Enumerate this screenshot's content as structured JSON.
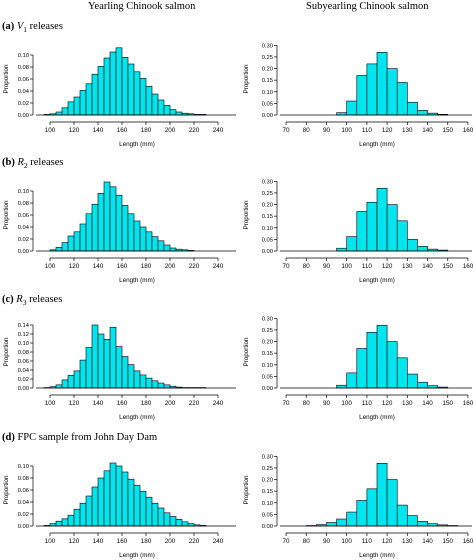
{
  "titles": {
    "col_left": "Yearling Chinook salmon",
    "col_right": "Subyearling Chinook salmon"
  },
  "rows": [
    {
      "tag": "(a)",
      "sym": "V",
      "sub": "1",
      "rest": " releases"
    },
    {
      "tag": "(b)",
      "sym": "R",
      "sub": "2",
      "rest": " releases"
    },
    {
      "tag": "(c)",
      "sym": "R",
      "sub": "3",
      "rest": " releases"
    },
    {
      "tag": "(d)",
      "sym": "",
      "sub": "",
      "rest": " FPC sample from John Day Dam"
    }
  ],
  "chart_data": [
    {
      "type": "bar",
      "panel": "a-yearling",
      "bar_color": "#00e5ee",
      "xlabel": "Length (mm)",
      "ylabel": "Proportion",
      "xlim": [
        90,
        255
      ],
      "xticks": [
        100,
        120,
        140,
        160,
        180,
        200,
        220,
        240
      ],
      "ylim": [
        0,
        0.12
      ],
      "yticks": [
        "0.00",
        "0.02",
        "0.04",
        "0.06",
        "0.08",
        "0.10"
      ],
      "bin_start": 95,
      "bin_width": 5,
      "values": [
        0.001,
        0.002,
        0.005,
        0.012,
        0.022,
        0.03,
        0.041,
        0.052,
        0.068,
        0.081,
        0.095,
        0.105,
        0.112,
        0.096,
        0.085,
        0.072,
        0.061,
        0.048,
        0.035,
        0.025,
        0.016,
        0.009,
        0.005,
        0.003,
        0.002,
        0.001,
        0.001
      ]
    },
    {
      "type": "bar",
      "panel": "a-subyearling",
      "bar_color": "#00e5ee",
      "xlabel": "Length (mm)",
      "ylabel": "Proportion",
      "xlim": [
        68,
        162
      ],
      "xticks": [
        70,
        80,
        90,
        100,
        110,
        120,
        130,
        140,
        150,
        160
      ],
      "ylim": [
        0,
        0.31
      ],
      "yticks": [
        "0.00",
        "0.05",
        "0.10",
        "0.15",
        "0.20",
        "0.25",
        "0.30"
      ],
      "bin_start": 95,
      "bin_width": 5,
      "values": [
        0.01,
        0.06,
        0.17,
        0.22,
        0.27,
        0.2,
        0.14,
        0.055,
        0.02,
        0.008,
        0.003
      ]
    },
    {
      "type": "bar",
      "panel": "b-yearling",
      "bar_color": "#00e5ee",
      "xlabel": "Length (mm)",
      "ylabel": "Proportion",
      "xlim": [
        90,
        255
      ],
      "xticks": [
        100,
        120,
        140,
        160,
        180,
        200,
        220,
        240
      ],
      "ylim": [
        0,
        0.12
      ],
      "yticks": [
        "0.00",
        "0.02",
        "0.04",
        "0.06",
        "0.08",
        "0.10"
      ],
      "bin_start": 100,
      "bin_width": 5,
      "values": [
        0.002,
        0.006,
        0.014,
        0.025,
        0.032,
        0.045,
        0.062,
        0.078,
        0.096,
        0.115,
        0.107,
        0.093,
        0.076,
        0.062,
        0.05,
        0.04,
        0.032,
        0.024,
        0.017,
        0.01,
        0.005,
        0.003,
        0.002,
        0.001
      ]
    },
    {
      "type": "bar",
      "panel": "b-subyearling",
      "bar_color": "#00e5ee",
      "xlabel": "Length (mm)",
      "ylabel": "Proportion",
      "xlim": [
        68,
        162
      ],
      "xticks": [
        70,
        80,
        90,
        100,
        110,
        120,
        130,
        140,
        150,
        160
      ],
      "ylim": [
        0,
        0.31
      ],
      "yticks": [
        "0.00",
        "0.05",
        "0.10",
        "0.15",
        "0.20",
        "0.25",
        "0.30"
      ],
      "bin_start": 95,
      "bin_width": 5,
      "values": [
        0.012,
        0.062,
        0.17,
        0.21,
        0.27,
        0.2,
        0.13,
        0.05,
        0.02,
        0.008,
        0.004
      ]
    },
    {
      "type": "bar",
      "panel": "c-yearling",
      "bar_color": "#00e5ee",
      "xlabel": "Length (mm)",
      "ylabel": "Proportion",
      "xlim": [
        90,
        255
      ],
      "xticks": [
        100,
        120,
        140,
        160,
        180,
        200,
        220,
        240
      ],
      "ylim": [
        0,
        0.16
      ],
      "yticks": [
        "0.00",
        "0.02",
        "0.04",
        "0.06",
        "0.08",
        "0.10",
        "0.12",
        "0.14"
      ],
      "bin_start": 95,
      "bin_width": 5,
      "values": [
        0.001,
        0.003,
        0.007,
        0.018,
        0.028,
        0.038,
        0.062,
        0.09,
        0.14,
        0.12,
        0.108,
        0.135,
        0.092,
        0.07,
        0.052,
        0.038,
        0.029,
        0.022,
        0.016,
        0.011,
        0.007,
        0.004,
        0.002,
        0.001,
        0.001,
        0.001,
        0.001
      ]
    },
    {
      "type": "bar",
      "panel": "c-subyearling",
      "bar_color": "#00e5ee",
      "xlabel": "Length (mm)",
      "ylabel": "Proportion",
      "xlim": [
        68,
        162
      ],
      "xticks": [
        70,
        80,
        90,
        100,
        110,
        120,
        130,
        140,
        150,
        160
      ],
      "ylim": [
        0,
        0.31
      ],
      "yticks": [
        "0.00",
        "0.05",
        "0.10",
        "0.15",
        "0.20",
        "0.25",
        "0.30"
      ],
      "bin_start": 95,
      "bin_width": 5,
      "values": [
        0.012,
        0.065,
        0.17,
        0.24,
        0.27,
        0.2,
        0.13,
        0.06,
        0.025,
        0.01,
        0.004
      ]
    },
    {
      "type": "bar",
      "panel": "d-yearling",
      "bar_color": "#00e5ee",
      "xlabel": "Length (mm)",
      "ylabel": "Proportion",
      "xlim": [
        90,
        255
      ],
      "xticks": [
        100,
        120,
        140,
        160,
        180,
        200,
        220,
        240
      ],
      "ylim": [
        0,
        0.12
      ],
      "yticks": [
        "0.00",
        "0.02",
        "0.04",
        "0.06",
        "0.08",
        "0.10"
      ],
      "bin_start": 95,
      "bin_width": 5,
      "values": [
        0.001,
        0.004,
        0.008,
        0.012,
        0.018,
        0.028,
        0.038,
        0.05,
        0.065,
        0.08,
        0.092,
        0.105,
        0.1,
        0.09,
        0.078,
        0.068,
        0.058,
        0.048,
        0.038,
        0.03,
        0.022,
        0.016,
        0.011,
        0.007,
        0.004,
        0.002,
        0.001
      ]
    },
    {
      "type": "bar",
      "panel": "d-subyearling",
      "bar_color": "#00e5ee",
      "xlabel": "Length (mm)",
      "ylabel": "Proportion",
      "xlim": [
        68,
        162
      ],
      "xticks": [
        70,
        80,
        90,
        100,
        110,
        120,
        130,
        140,
        150,
        160
      ],
      "ylim": [
        0,
        0.31
      ],
      "yticks": [
        "0.00",
        "0.05",
        "0.10",
        "0.15",
        "0.20",
        "0.25",
        "0.30"
      ],
      "bin_start": 80,
      "bin_width": 5,
      "values": [
        0.002,
        0.006,
        0.015,
        0.03,
        0.06,
        0.11,
        0.16,
        0.27,
        0.2,
        0.09,
        0.045,
        0.02,
        0.01,
        0.005,
        0.002
      ]
    }
  ]
}
